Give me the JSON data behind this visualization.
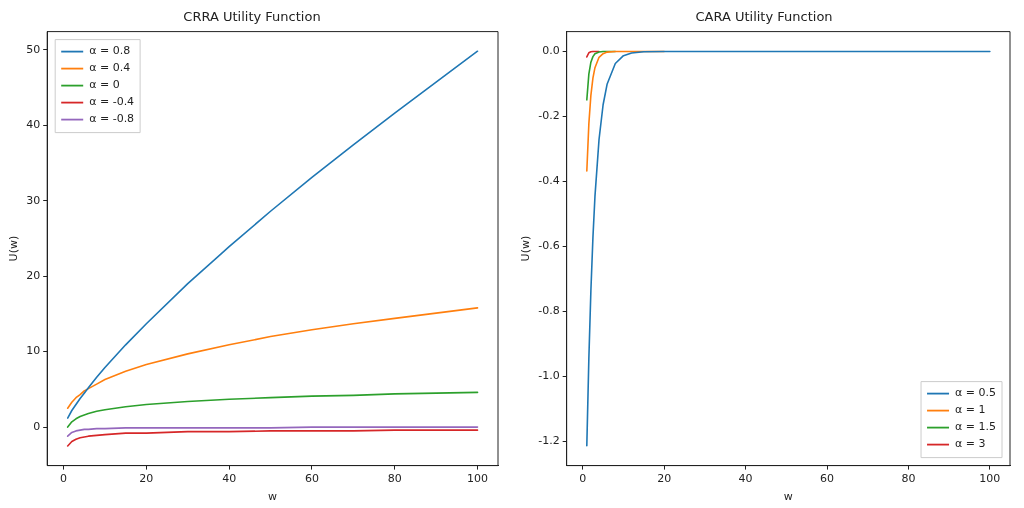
{
  "chart_data": [
    {
      "type": "line",
      "title": "CRRA Utility Function",
      "xlabel": "w",
      "ylabel": "U(w)",
      "xlim": [
        -3.95,
        104.95
      ],
      "xticks": [
        0,
        20,
        40,
        60,
        80,
        100
      ],
      "ylim": [
        -5.1,
        52.4
      ],
      "yticks": [
        0,
        10,
        20,
        30,
        40,
        50
      ],
      "x": [
        1,
        2,
        3,
        4,
        5,
        6,
        8,
        10,
        15,
        20,
        30,
        40,
        50,
        60,
        70,
        80,
        90,
        100
      ],
      "legend": "top left",
      "grid": false,
      "marker": "none",
      "line_style": "solid",
      "series": [
        {
          "name": "α = 0.8",
          "color": "#1f77b4",
          "values": [
            1.2,
            2.2,
            3.0,
            3.8,
            4.5,
            5.2,
            6.6,
            7.9,
            10.9,
            13.7,
            19.0,
            23.9,
            28.6,
            33.1,
            37.4,
            41.6,
            45.7,
            49.8
          ]
        },
        {
          "name": "α = 0.4",
          "color": "#ff7f0e",
          "values": [
            2.5,
            3.3,
            3.9,
            4.3,
            4.8,
            5.1,
            5.7,
            6.3,
            7.4,
            8.3,
            9.7,
            10.9,
            12.0,
            12.9,
            13.7,
            14.4,
            15.1,
            15.8
          ]
        },
        {
          "name": "α = 0",
          "color": "#2ca02c",
          "values": [
            0,
            0.7,
            1.1,
            1.4,
            1.6,
            1.8,
            2.1,
            2.3,
            2.7,
            3.0,
            3.4,
            3.7,
            3.9,
            4.1,
            4.2,
            4.4,
            4.5,
            4.6
          ]
        },
        {
          "name": "α = -0.4",
          "color": "#d62728",
          "values": [
            -2.5,
            -1.9,
            -1.6,
            -1.4,
            -1.3,
            -1.2,
            -1.1,
            -1.0,
            -0.8,
            -0.8,
            -0.6,
            -0.6,
            -0.5,
            -0.5,
            -0.5,
            -0.4,
            -0.4,
            -0.4
          ]
        },
        {
          "name": "α = -0.8",
          "color": "#9467bd",
          "values": [
            -1.2,
            -0.7,
            -0.5,
            -0.4,
            -0.3,
            -0.3,
            -0.2,
            -0.2,
            -0.1,
            -0.1,
            -0.1,
            -0.1,
            -0.1,
            0,
            0,
            0,
            0,
            0
          ]
        }
      ]
    },
    {
      "type": "line",
      "title": "CARA Utility Function",
      "xlabel": "w",
      "ylabel": "U(w)",
      "xlim": [
        -3.95,
        104.95
      ],
      "xticks": [
        0,
        20,
        40,
        60,
        80,
        100
      ],
      "ylim": [
        -1.274,
        0.061
      ],
      "yticks": [
        {
          "value": -1.2,
          "label": "-1.2"
        },
        {
          "value": -1.0,
          "label": "-1.0"
        },
        {
          "value": -0.8,
          "label": "-0.8"
        },
        {
          "value": -0.6,
          "label": "-0.6"
        },
        {
          "value": -0.4,
          "label": "-0.4"
        },
        {
          "value": -0.2,
          "label": "-0.2"
        },
        {
          "value": 0,
          "label": "0.0"
        }
      ],
      "x": [
        1,
        1.5,
        2,
        2.5,
        3,
        4,
        5,
        6,
        8,
        10,
        12,
        15,
        20,
        30,
        50,
        100
      ],
      "legend": "bottom right",
      "grid": false,
      "marker": "none",
      "line_style": "solid",
      "series": [
        {
          "name": "α = 0.5",
          "color": "#1f77b4",
          "values": [
            -1.213,
            -0.945,
            -0.736,
            -0.573,
            -0.446,
            -0.271,
            -0.164,
            -0.1,
            -0.037,
            -0.013,
            -0.005,
            -0.001,
            0,
            0,
            0,
            0
          ]
        },
        {
          "name": "α = 1",
          "color": "#ff7f0e",
          "values": [
            -0.368,
            -0.223,
            -0.135,
            -0.082,
            -0.05,
            -0.018,
            -0.007,
            -0.002,
            0,
            0,
            0,
            0,
            0,
            null,
            null,
            null
          ]
        },
        {
          "name": "α = 1.5",
          "color": "#2ca02c",
          "values": [
            -0.149,
            -0.07,
            -0.033,
            -0.016,
            -0.007,
            -0.002,
            0,
            0,
            0,
            null,
            null,
            null,
            null,
            null,
            null,
            null
          ]
        },
        {
          "name": "α = 3",
          "color": "#d62728",
          "values": [
            -0.017,
            -0.004,
            -0.001,
            0,
            0,
            0,
            null,
            null,
            null,
            null,
            null,
            null,
            null,
            null,
            null,
            null
          ]
        }
      ]
    }
  ]
}
